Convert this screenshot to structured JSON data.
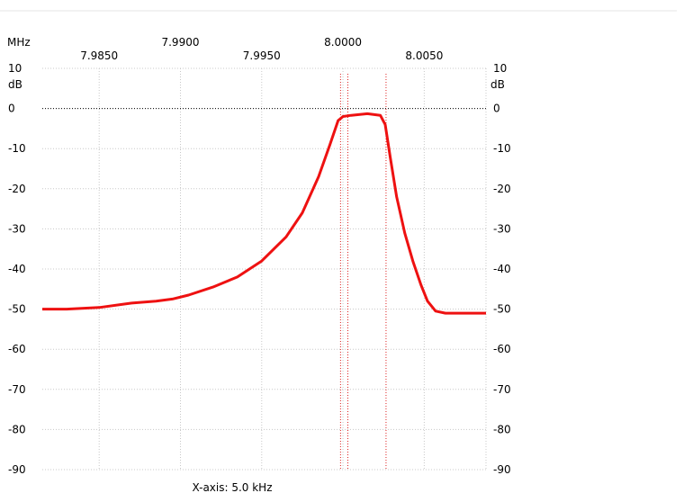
{
  "chart_data": {
    "type": "line",
    "x_unit": "MHz",
    "y_unit_left": "dB",
    "y_unit_right": "dB",
    "xlim": [
      7.9815,
      8.0088
    ],
    "ylim": [
      -90,
      10
    ],
    "x_ticks_upper": [
      {
        "value": 7.99,
        "label": "7.9900"
      },
      {
        "value": 8.0,
        "label": "8.0000"
      }
    ],
    "x_ticks_lower": [
      {
        "value": 7.985,
        "label": "7.9850"
      },
      {
        "value": 7.995,
        "label": "7.9950"
      },
      {
        "value": 8.005,
        "label": "8.0050"
      }
    ],
    "y_ticks": [
      10,
      0,
      -10,
      -20,
      -30,
      -40,
      -50,
      -60,
      -70,
      -80,
      -90
    ],
    "grid": true,
    "reference_line_db": 0,
    "markers_mhz": [
      7.99985,
      8.0003,
      8.00265
    ],
    "footer_label": "X-axis: 5.0 kHz",
    "line_color": "#ee1111",
    "marker_color": "#dd2222",
    "series": [
      {
        "x": [
          7.9815,
          7.983,
          7.985,
          7.987,
          7.9885,
          7.9895,
          7.9905,
          7.992,
          7.9935,
          7.995,
          7.9965,
          7.9975,
          7.9985,
          7.9992,
          7.9997,
          8.0,
          8.0005,
          8.0015,
          8.0023,
          8.0026,
          8.0029,
          8.0033,
          8.0038,
          8.0043,
          8.0048,
          8.0052,
          8.0057,
          8.0063,
          8.007,
          8.0078,
          8.0088
        ],
        "y": [
          -50,
          -50,
          -49.6,
          -48.5,
          -48,
          -47.5,
          -46.5,
          -44.5,
          -42,
          -38,
          -32,
          -26,
          -17,
          -9,
          -3,
          -2,
          -1.7,
          -1.3,
          -1.7,
          -4,
          -12,
          -22,
          -31,
          -38,
          -44,
          -48,
          -50.5,
          -51,
          -51,
          -51,
          -51
        ]
      }
    ]
  }
}
